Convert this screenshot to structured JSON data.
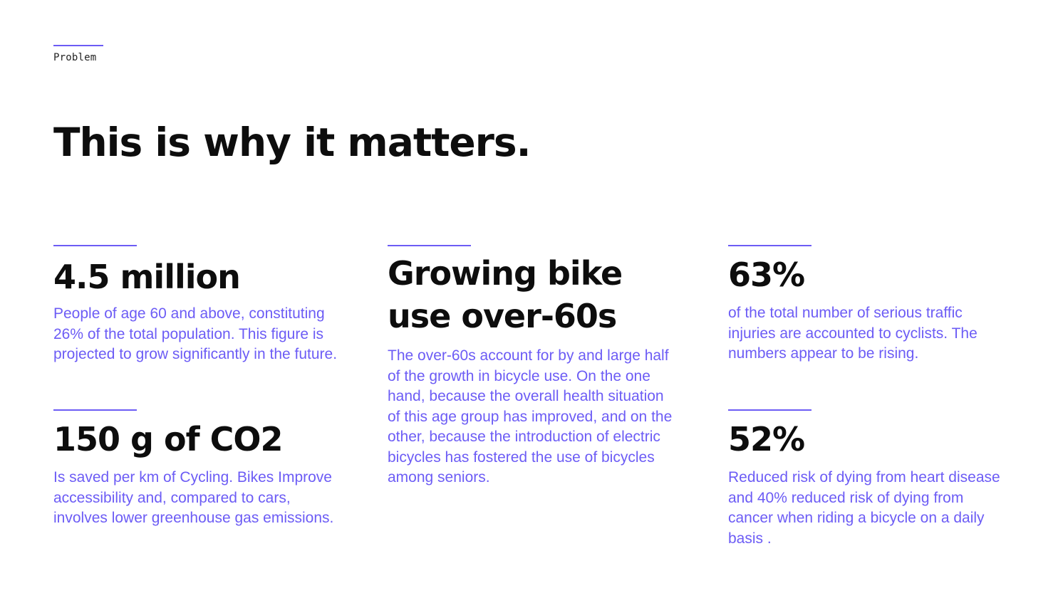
{
  "header": {
    "eyebrow": "Problem",
    "title": "This is why it matters."
  },
  "stats": [
    {
      "value": "4.5 million",
      "description": "People of age 60 and above, constituting 26% of the total population. This figure is projected to grow significantly in the future."
    },
    {
      "value": "150 g of CO2",
      "description": "Is saved per km of Cycling. Bikes Improve accessibility and, compared to cars, involves lower greenhouse gas emissions."
    },
    {
      "value_line1": "Growing bike",
      "value_line2": "use over-60s",
      "description": "The over-60s account for by and large half of the growth in bicycle use. On the one hand, because the overall health situation of this age group has improved, and on the other, because the introduction of electric bicycles has fostered the use of bicycles among seniors."
    },
    {
      "value": "63%",
      "description": "of the total number of serious traffic injuries are accounted to cyclists. The numbers appear to be rising."
    },
    {
      "value": "52%",
      "description": "Reduced risk of dying from heart disease and 40% reduced risk of dying from cancer when riding a bicycle on a daily basis  ."
    }
  ],
  "colors": {
    "accent": "#6c5cf5",
    "text": "#0d0d0d"
  }
}
